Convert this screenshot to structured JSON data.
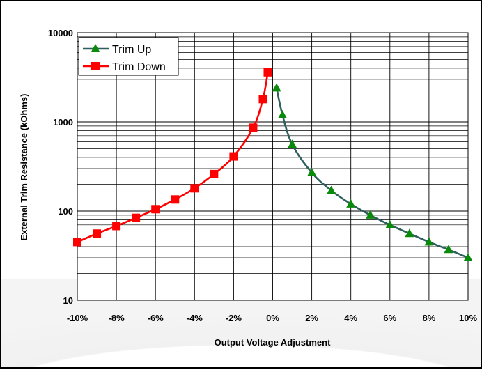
{
  "chart_data": {
    "type": "line",
    "title": "",
    "xlabel": "Output Voltage Adjustment",
    "ylabel": "External Trim Resistance (kOhms)",
    "xlim": [
      -10,
      10
    ],
    "ylim": [
      10,
      10000
    ],
    "yscale": "log",
    "grid": true,
    "legend_position": "top-left",
    "x_tick_labels": [
      "-10%",
      "-8%",
      "-6%",
      "-4%",
      "-2%",
      "0%",
      "2%",
      "4%",
      "6%",
      "8%",
      "10%"
    ],
    "y_tick_labels": [
      "10",
      "100",
      "1000",
      "10000"
    ],
    "series": [
      {
        "name": "Trim Up",
        "color": "#2e5e5e",
        "marker_color": "#0a8a0a",
        "marker": "triangle",
        "x": [
          0.2,
          0.5,
          1,
          2,
          3,
          4,
          5,
          6,
          7,
          8,
          9,
          10
        ],
        "y": [
          2400,
          1200,
          560,
          270,
          170,
          120,
          90,
          70,
          56,
          45,
          37,
          30
        ]
      },
      {
        "name": "Trim Down",
        "color": "#ff0000",
        "marker_color": "#ff0000",
        "marker": "square",
        "x": [
          -10,
          -9,
          -8,
          -7,
          -6,
          -5,
          -4,
          -3,
          -2,
          -1,
          -0.5,
          -0.25
        ],
        "y": [
          45,
          56,
          68,
          84,
          105,
          135,
          180,
          260,
          410,
          860,
          1800,
          3600
        ]
      }
    ]
  }
}
